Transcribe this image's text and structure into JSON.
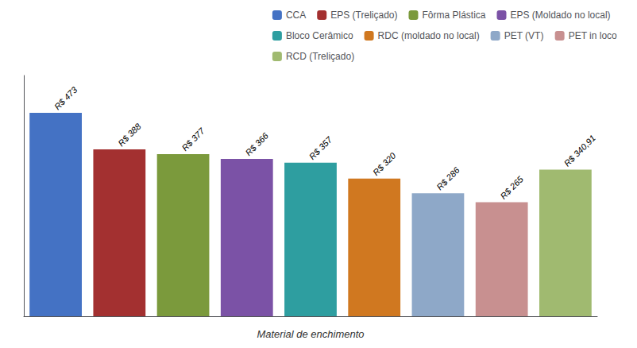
{
  "chart_data": {
    "type": "bar",
    "xlabel": "Material de enchimento",
    "categories": [
      "CCA",
      "EPS (Treliçado)",
      "Fôrma Plástica",
      "EPS (Moldado no local)",
      "Bloco Cerâmico",
      "RDC (moldado no local)",
      "PET (VT)",
      "PET in loco",
      "RCD (Treliçado)"
    ],
    "values": [
      473,
      388,
      377,
      366,
      357,
      320,
      286,
      265,
      340.91
    ],
    "value_labels": [
      "R$ 473",
      "R$ 388",
      "R$ 377",
      "R$ 366",
      "R$ 357",
      "R$ 320",
      "R$ 286",
      "R$ 265",
      "R$ 340,91"
    ],
    "colors": [
      "#4472C4",
      "#A33030",
      "#7B9A3C",
      "#7B52A6",
      "#2E9EA0",
      "#D07820",
      "#8EA8C8",
      "#C89090",
      "#A0BA70"
    ],
    "ylim": [
      0,
      560
    ],
    "data_labels": true,
    "tick_labels": false,
    "grid": false,
    "legend": "upper right"
  }
}
